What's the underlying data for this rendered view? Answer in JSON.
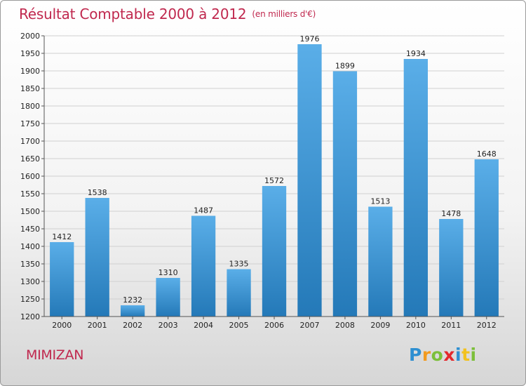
{
  "header": {
    "title": "Résultat Comptable 2000 à 2012",
    "subtitle": "(en milliers d'€)"
  },
  "footer": {
    "place": "MIMIZAN",
    "logo_letters": [
      "P",
      "r",
      "o",
      "x",
      "i",
      "t",
      "i"
    ],
    "logo_colors": [
      "#2e8fd1",
      "#f29a1f",
      "#7cbf3a",
      "#e4282c",
      "#2e8fd1",
      "#f2c21f",
      "#7cbf3a"
    ]
  },
  "colors": {
    "title": "#c0284e",
    "bar_top": "#5aaee8",
    "bar_bottom": "#2479b8",
    "grid": "#d0d0d0",
    "axis_text": "#222222"
  },
  "chart_data": {
    "type": "bar",
    "categories": [
      "2000",
      "2001",
      "2002",
      "2003",
      "2004",
      "2005",
      "2006",
      "2007",
      "2008",
      "2009",
      "2010",
      "2011",
      "2012"
    ],
    "values": [
      1412,
      1538,
      1232,
      1310,
      1487,
      1335,
      1572,
      1976,
      1899,
      1513,
      1934,
      1478,
      1648
    ],
    "ylim": [
      1200,
      2000
    ],
    "yticks": [
      1200,
      1250,
      1300,
      1350,
      1400,
      1450,
      1500,
      1550,
      1600,
      1650,
      1700,
      1750,
      1800,
      1850,
      1900,
      1950,
      2000
    ],
    "grid": true,
    "title": "Résultat Comptable 2000 à 2012",
    "xlabel": "",
    "ylabel": ""
  }
}
